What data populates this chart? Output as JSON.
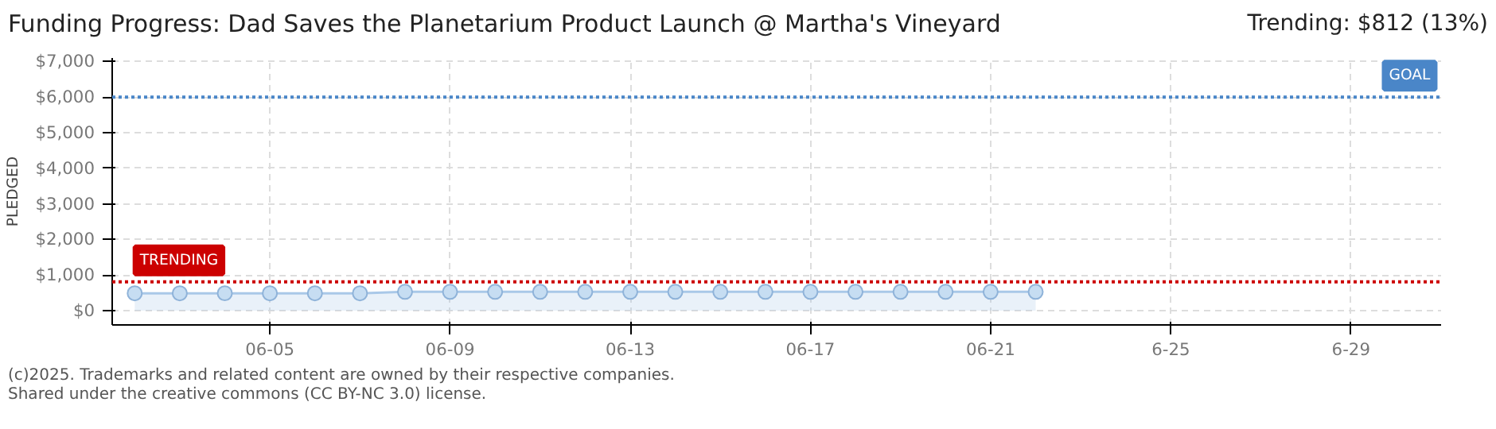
{
  "chart_data": {
    "type": "area",
    "title": "Funding Progress: Dad Saves the Planetarium Product Launch @ Martha's Vineyard",
    "subtitle": "Trending:  $812 (13%)",
    "ylabel": "PLEDGED",
    "x": [
      "2025-06-02",
      "2025-06-03",
      "2025-06-04",
      "2025-06-05",
      "2025-06-06",
      "2025-06-07",
      "2025-06-08",
      "2025-06-09",
      "2025-06-10",
      "2025-06-11",
      "2025-06-12",
      "2025-06-13",
      "2025-06-14",
      "2025-06-15",
      "2025-06-16",
      "2025-06-17",
      "2025-06-18",
      "2025-06-19",
      "2025-06-20",
      "2025-06-21",
      "2025-06-22"
    ],
    "series": [
      {
        "color": "#a9c8e8",
        "values": [
          490,
          490,
          490,
          490,
          490,
          490,
          530,
          530,
          530,
          530,
          530,
          530,
          530,
          530,
          530,
          530,
          530,
          530,
          530,
          530,
          530
        ]
      }
    ],
    "marker": "circle",
    "grid": true,
    "xlim": [
      "2025-06-01T12:00",
      "2025-07-01"
    ],
    "xticks": [
      {
        "value": "2025-06-05",
        "label": "06-05"
      },
      {
        "value": "2025-06-09",
        "label": "06-09"
      },
      {
        "value": "2025-06-13",
        "label": "06-13"
      },
      {
        "value": "2025-06-17",
        "label": "06-17"
      },
      {
        "value": "2025-06-21",
        "label": "06-21"
      },
      {
        "value": "2025-06-25",
        "label": "6-25"
      },
      {
        "value": "2025-06-29",
        "label": "6-29"
      }
    ],
    "ylim": [
      -400,
      7100
    ],
    "yticks": [
      {
        "value": 0,
        "label": "$0"
      },
      {
        "value": 1000,
        "label": "$1,000"
      },
      {
        "value": 2000,
        "label": "$2,000"
      },
      {
        "value": 3000,
        "label": "$3,000"
      },
      {
        "value": 4000,
        "label": "$4,000"
      },
      {
        "value": 5000,
        "label": "$5,000"
      },
      {
        "value": 6000,
        "label": "$6,000"
      },
      {
        "value": 7000,
        "label": "$7,000"
      }
    ],
    "ref_lines": [
      {
        "axis": "y",
        "value": 6000,
        "label": "GOAL",
        "color": "#4a86c8",
        "line_style": "dotted"
      },
      {
        "axis": "y",
        "value": 812,
        "label": "TRENDING",
        "color": "#cc0000",
        "line_style": "dotted"
      }
    ],
    "annotations": [
      "(c)2025. Trademarks and related content are owned by their respective companies.",
      "Shared under the creative commons (CC BY-NC 3.0) license."
    ]
  }
}
